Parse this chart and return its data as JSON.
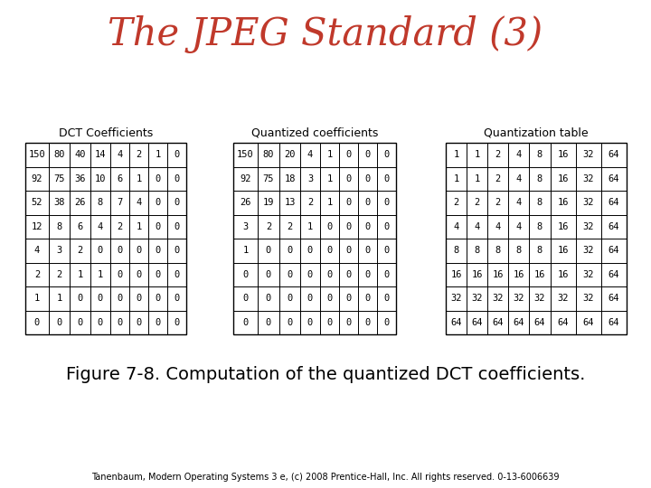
{
  "title": "The JPEG Standard (3)",
  "figure_caption": "Figure 7-8. Computation of the quantized DCT coefficients.",
  "footer": "Tanenbaum, Modern Operating Systems 3 e, (c) 2008 Prentice-Hall, Inc. All rights reserved. 0-13-6006639",
  "dct_title": "DCT Coefficients",
  "quant_title": "Quantized coefficients",
  "qtable_title": "Quantization table",
  "dct_data": [
    [
      150,
      80,
      40,
      14,
      4,
      2,
      1,
      0
    ],
    [
      92,
      75,
      36,
      10,
      6,
      1,
      0,
      0
    ],
    [
      52,
      38,
      26,
      8,
      7,
      4,
      0,
      0
    ],
    [
      12,
      8,
      6,
      4,
      2,
      1,
      0,
      0
    ],
    [
      4,
      3,
      2,
      0,
      0,
      0,
      0,
      0
    ],
    [
      2,
      2,
      1,
      1,
      0,
      0,
      0,
      0
    ],
    [
      1,
      1,
      0,
      0,
      0,
      0,
      0,
      0
    ],
    [
      0,
      0,
      0,
      0,
      0,
      0,
      0,
      0
    ]
  ],
  "quantized_data": [
    [
      150,
      80,
      20,
      4,
      1,
      0,
      0,
      0
    ],
    [
      92,
      75,
      18,
      3,
      1,
      0,
      0,
      0
    ],
    [
      26,
      19,
      13,
      2,
      1,
      0,
      0,
      0
    ],
    [
      3,
      2,
      2,
      1,
      0,
      0,
      0,
      0
    ],
    [
      1,
      0,
      0,
      0,
      0,
      0,
      0,
      0
    ],
    [
      0,
      0,
      0,
      0,
      0,
      0,
      0,
      0
    ],
    [
      0,
      0,
      0,
      0,
      0,
      0,
      0,
      0
    ],
    [
      0,
      0,
      0,
      0,
      0,
      0,
      0,
      0
    ]
  ],
  "qtable_data": [
    [
      1,
      1,
      2,
      4,
      8,
      16,
      32,
      64
    ],
    [
      1,
      1,
      2,
      4,
      8,
      16,
      32,
      64
    ],
    [
      2,
      2,
      2,
      4,
      8,
      16,
      32,
      64
    ],
    [
      4,
      4,
      4,
      4,
      8,
      16,
      32,
      64
    ],
    [
      8,
      8,
      8,
      8,
      8,
      16,
      32,
      64
    ],
    [
      16,
      16,
      16,
      16,
      16,
      16,
      32,
      64
    ],
    [
      32,
      32,
      32,
      32,
      32,
      32,
      32,
      64
    ],
    [
      64,
      64,
      64,
      64,
      64,
      64,
      64,
      64
    ]
  ],
  "bg_color": "#ffffff",
  "title_color": "#c0392b",
  "table_line_color": "#000000",
  "title_fontsize": 30,
  "header_fontsize": 9,
  "cell_fontsize": 7.5,
  "caption_fontsize": 14,
  "footer_fontsize": 7
}
